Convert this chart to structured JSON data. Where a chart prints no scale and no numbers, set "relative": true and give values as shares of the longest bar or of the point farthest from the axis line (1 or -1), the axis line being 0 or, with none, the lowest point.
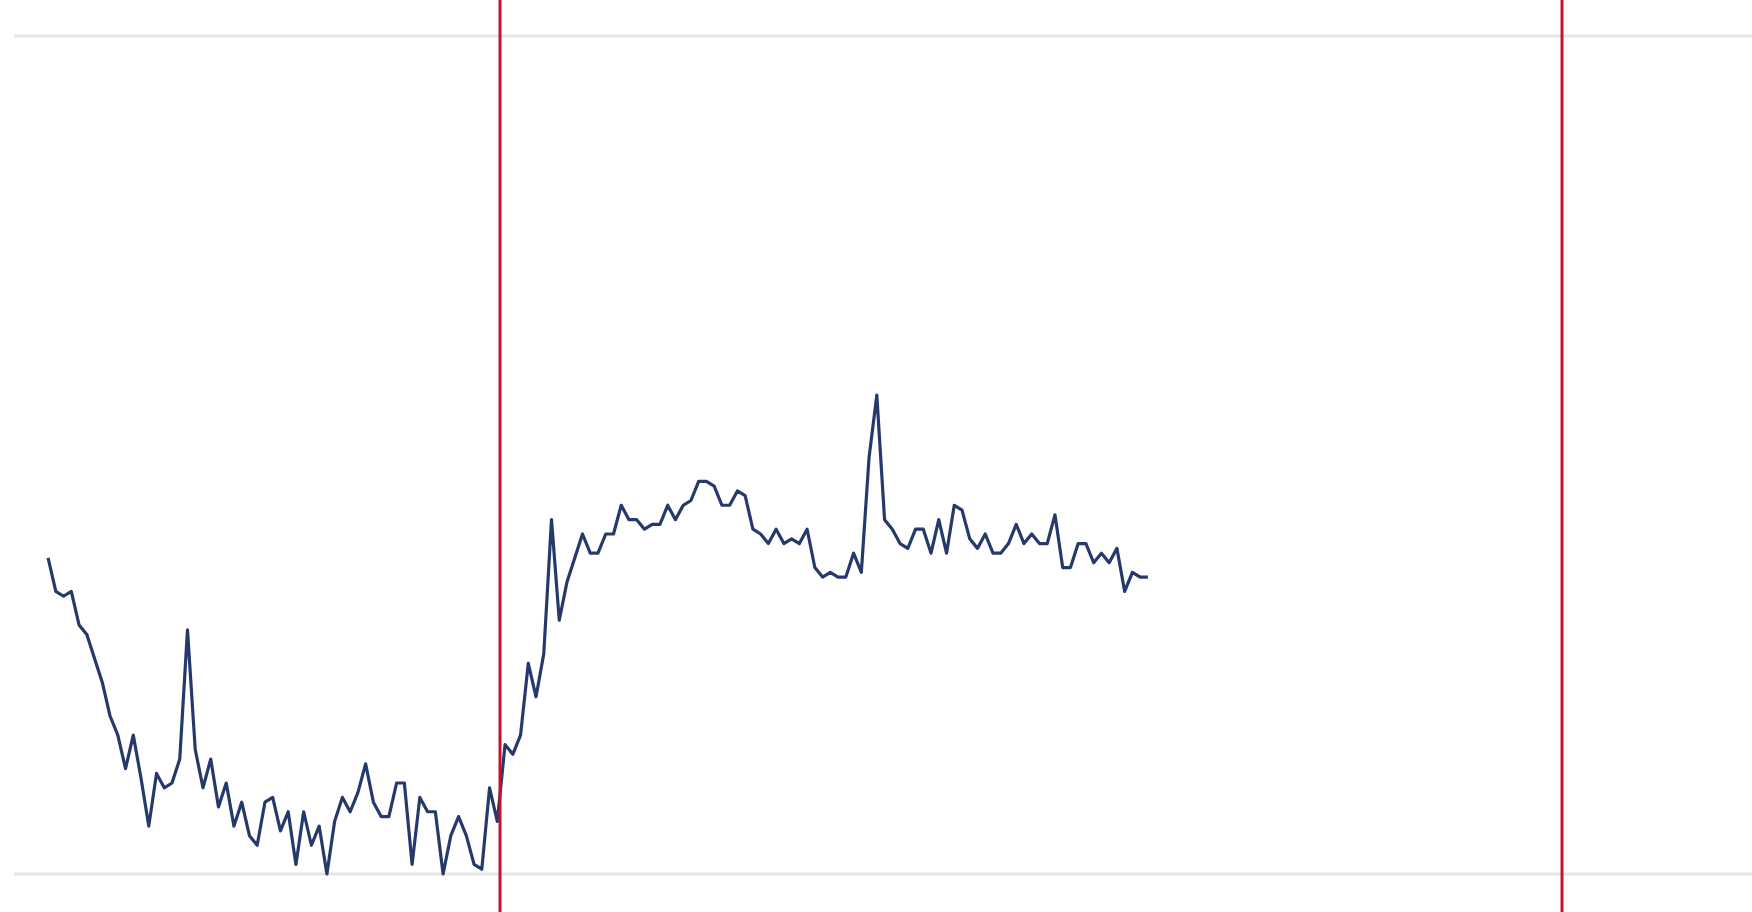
{
  "chart_data": {
    "type": "line",
    "relative": true,
    "color": "#253a6b",
    "categories": [
      null,
      null,
      null,
      null,
      null,
      null,
      null,
      null,
      null,
      null,
      null,
      null,
      null,
      null,
      null,
      null,
      null,
      null,
      null,
      null,
      null,
      null,
      null,
      null,
      null,
      null,
      null,
      null,
      null,
      null,
      null,
      null,
      null,
      null,
      null,
      null,
      null,
      null,
      null,
      null,
      null,
      null,
      null,
      null,
      null,
      null,
      null,
      null,
      null,
      null,
      null,
      null,
      null,
      null,
      null,
      null,
      null,
      null,
      null,
      null,
      null,
      null,
      null,
      null,
      null,
      null,
      null,
      null,
      null,
      null,
      null,
      null,
      null,
      null,
      null,
      null,
      null,
      null,
      null,
      null,
      null,
      null,
      null,
      null,
      null,
      null,
      null,
      null,
      null,
      null,
      null,
      null,
      null,
      null,
      null,
      null,
      null,
      null,
      null,
      null,
      null,
      null,
      null,
      null,
      null,
      null,
      null,
      null,
      null,
      null,
      null,
      null,
      null,
      null,
      null,
      null,
      null,
      null,
      null,
      null,
      null,
      null,
      null,
      null,
      null,
      null,
      null,
      null,
      null,
      null,
      null,
      null,
      null,
      null,
      null,
      null,
      null,
      null,
      null,
      null,
      null,
      null,
      null,
      null,
      null,
      null,
      null,
      null,
      null,
      null,
      null,
      null,
      null,
      null,
      null,
      null,
      null,
      null,
      null,
      null,
      null,
      null,
      null,
      null,
      null,
      null,
      null,
      null,
      null,
      null,
      null,
      null,
      null,
      null,
      null,
      null,
      null,
      null,
      null,
      null,
      null,
      null,
      null,
      null,
      null,
      null,
      null,
      null,
      null,
      null,
      null,
      null,
      null,
      null,
      null,
      null,
      null,
      null,
      null,
      null,
      null,
      null,
      null,
      null,
      null,
      null,
      null,
      null,
      null,
      null,
      null,
      null,
      null,
      null,
      null,
      null,
      null,
      null,
      null,
      null,
      null
    ],
    "values": [
      0.66,
      0.59,
      0.58,
      0.59,
      0.52,
      0.5,
      0.45,
      0.4,
      0.33,
      0.29,
      0.22,
      0.29,
      0.2,
      0.1,
      0.21,
      0.18,
      0.19,
      0.24,
      0.51,
      0.26,
      0.18,
      0.24,
      0.14,
      0.19,
      0.1,
      0.15,
      0.08,
      0.06,
      0.15,
      0.16,
      0.09,
      0.13,
      0.02,
      0.13,
      0.06,
      0.1,
      0,
      0.11,
      0.16,
      0.13,
      0.17,
      0.23,
      0.15,
      0.12,
      0.12,
      0.19,
      0.19,
      0.02,
      0.16,
      0.13,
      0.13,
      0,
      0.08,
      0.12,
      0.08,
      0.02,
      0.01,
      0.18,
      0.11,
      0.27,
      0.25,
      0.29,
      0.44,
      0.37,
      0.46,
      0.74,
      0.53,
      0.61,
      0.66,
      0.71,
      0.67,
      0.67,
      0.71,
      0.71,
      0.77,
      0.74,
      0.74,
      0.72,
      0.73,
      0.73,
      0.77,
      0.74,
      0.77,
      0.78,
      0.82,
      0.82,
      0.81,
      0.77,
      0.77,
      0.8,
      0.79,
      0.72,
      0.71,
      0.69,
      0.72,
      0.69,
      0.7,
      0.69,
      0.72,
      0.64,
      0.62,
      0.63,
      0.62,
      0.62,
      0.67,
      0.63,
      0.87,
      1,
      0.74,
      0.72,
      0.69,
      0.68,
      0.72,
      0.72,
      0.67,
      0.74,
      0.67,
      0.77,
      0.76,
      0.7,
      0.68,
      0.71,
      0.67,
      0.67,
      0.69,
      0.73,
      0.69,
      0.71,
      0.69,
      0.69,
      0.75,
      0.64,
      0.64,
      0.69,
      0.69,
      0.65,
      0.67,
      0.65,
      0.68,
      0.59,
      0.63,
      0.62,
      0.62,
      null,
      null,
      null,
      null,
      null,
      null,
      null,
      null,
      null,
      null,
      null,
      null,
      null,
      null,
      null,
      null,
      null,
      null,
      null,
      null,
      null,
      null,
      null,
      null,
      null,
      null,
      null,
      null,
      null,
      null,
      null,
      null,
      null,
      null,
      null,
      null,
      null,
      null,
      null,
      null,
      null,
      null,
      null,
      null,
      null,
      null,
      null,
      null,
      null,
      null,
      null,
      null,
      null,
      null,
      null,
      null,
      null,
      null,
      null,
      null,
      null,
      null,
      null,
      null,
      null,
      null,
      null,
      null,
      null,
      null,
      null,
      null,
      null,
      null,
      null,
      null,
      null,
      null
    ]
  }
}
